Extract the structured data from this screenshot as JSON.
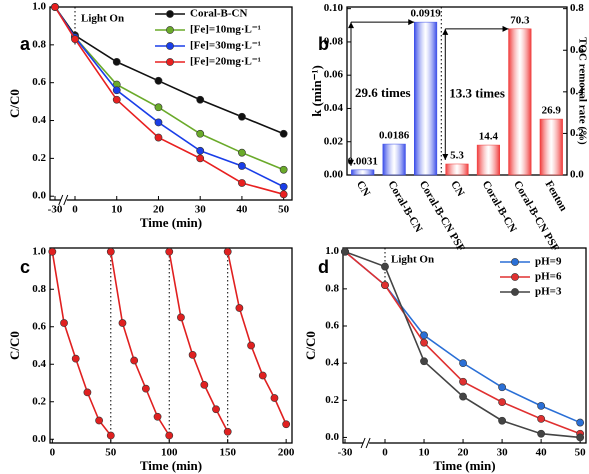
{
  "chart_data": [
    {
      "type": "line",
      "panel_label": "a",
      "xlabel": "Time (min)",
      "ylabel": "C/C0",
      "annotation": "Light On",
      "vlines": [
        0
      ],
      "x": [
        -30,
        0,
        10,
        20,
        30,
        40,
        50
      ],
      "xlim": [
        -37.5,
        52
      ],
      "xticks": [
        -30,
        0,
        10,
        20,
        30,
        40,
        50
      ],
      "x_break": true,
      "ylim": [
        -0.02,
        1.0
      ],
      "yticks": [
        {
          "value": 0,
          "label": "0.0"
        },
        {
          "value": 0.2,
          "label": "0.2"
        },
        {
          "value": 0.4,
          "label": "0.4"
        },
        {
          "value": 0.6,
          "label": "0.6"
        },
        {
          "value": 0.8,
          "label": "0.8"
        },
        {
          "value": 1,
          "label": "1.0"
        }
      ],
      "legend": "upper right",
      "series": [
        {
          "name": "Coral-B-CN",
          "color": "#111111",
          "values": [
            1.0,
            0.85,
            0.71,
            0.61,
            0.51,
            0.42,
            0.33
          ]
        },
        {
          "name": "[Fe]=10mg·L⁻¹",
          "color": "#6aaa2a",
          "values": [
            1.0,
            0.84,
            0.59,
            0.47,
            0.33,
            0.23,
            0.14
          ]
        },
        {
          "name": "[Fe]=30mg·L⁻¹",
          "color": "#1a3ee8",
          "values": [
            1.0,
            0.84,
            0.56,
            0.39,
            0.24,
            0.16,
            0.05
          ]
        },
        {
          "name": "[Fe]=20mg·L⁻¹",
          "color": "#e82020",
          "values": [
            1.0,
            0.83,
            0.51,
            0.31,
            0.2,
            0.07,
            0.01
          ]
        }
      ]
    },
    {
      "type": "bar",
      "panel_label": "b",
      "ylabel": "k (min⁻¹)",
      "y2label": "TOC removal rate (%)",
      "categories": [
        "CN",
        "Coral-B-CN",
        "Coral-B-CN PSF",
        "CN",
        "Coral-B-CN",
        "Coral-B-CN PSF",
        "Fenton"
      ],
      "ylim": [
        0,
        0.101
      ],
      "yticks": [
        {
          "value": 0,
          "label": "0.00"
        },
        {
          "value": 0.02,
          "label": "0.02"
        },
        {
          "value": 0.04,
          "label": "0.04"
        },
        {
          "value": 0.06,
          "label": "0.06"
        },
        {
          "value": 0.08,
          "label": "0.08"
        },
        {
          "value": 0.1,
          "label": "0.10"
        }
      ],
      "y2lim": [
        0,
        0.808
      ],
      "y2ticks": [
        {
          "value": 0,
          "label": "0.0"
        },
        {
          "value": 0.2,
          "label": "0.2"
        },
        {
          "value": 0.4,
          "label": "0.4"
        },
        {
          "value": 0.6,
          "label": "0.6"
        },
        {
          "value": 0.8,
          "label": "0.8"
        }
      ],
      "annotations": [
        "29.6 times",
        "13.3 times"
      ],
      "series": [
        {
          "color": "#3a4de8",
          "axis": "y",
          "values": [
            0.0031,
            0.0186,
            0.0919,
            null,
            null,
            null,
            null
          ]
        },
        {
          "color": "#f03a3a",
          "axis": "y2",
          "values": [
            null,
            null,
            null,
            0.053,
            0.144,
            0.703,
            0.269
          ],
          "value_labels": [
            null,
            null,
            null,
            "5.3",
            "14.4",
            "70.3",
            "26.9"
          ]
        }
      ]
    },
    {
      "type": "line",
      "panel_label": "c",
      "xlabel": "Time (min)",
      "ylabel": "C/C0",
      "vlines": [
        50,
        100,
        150
      ],
      "x": [
        0,
        10,
        20,
        30,
        40,
        50,
        null,
        50,
        60,
        70,
        80,
        90,
        100,
        null,
        100,
        110,
        120,
        130,
        140,
        150,
        null,
        150,
        160,
        170,
        180,
        190,
        200
      ],
      "xlim": [
        -2,
        205
      ],
      "xticks": [
        0,
        50,
        100,
        150,
        200
      ],
      "ylim": [
        -0.02,
        1.02
      ],
      "yticks": [
        {
          "value": 0,
          "label": "0.0"
        },
        {
          "value": 0.2,
          "label": "0.2"
        },
        {
          "value": 0.4,
          "label": "0.4"
        },
        {
          "value": 0.6,
          "label": "0.6"
        },
        {
          "value": 0.8,
          "label": "0.8"
        },
        {
          "value": 1,
          "label": "1.0"
        }
      ],
      "series": [
        {
          "color": "#e02020",
          "values": [
            1.0,
            0.62,
            0.43,
            0.25,
            0.1,
            0.02,
            null,
            1.0,
            0.62,
            0.42,
            0.27,
            0.12,
            0.02,
            null,
            1.0,
            0.65,
            0.45,
            0.29,
            0.16,
            0.04,
            null,
            1.0,
            0.7,
            0.5,
            0.34,
            0.22,
            0.08
          ]
        }
      ]
    },
    {
      "type": "line",
      "panel_label": "d",
      "xlabel": "Time (min)",
      "ylabel": "C/C0",
      "annotation": "Light On",
      "vlines": [
        0
      ],
      "x": [
        -30,
        0,
        10,
        20,
        30,
        40,
        50
      ],
      "xlim": [
        -31.5,
        51.5
      ],
      "xticks": [
        -30,
        0,
        10,
        20,
        30,
        40,
        50
      ],
      "x_break": true,
      "ylim": [
        -0.03,
        1.02
      ],
      "yticks": [
        {
          "value": 0,
          "label": "0.0"
        },
        {
          "value": 0.2,
          "label": "0.2"
        },
        {
          "value": 0.4,
          "label": "0.4"
        },
        {
          "value": 0.6,
          "label": "0.6"
        },
        {
          "value": 0.8,
          "label": "0.8"
        },
        {
          "value": 1,
          "label": "1.0"
        }
      ],
      "legend": "upper right",
      "series": [
        {
          "name": "pH=9",
          "color": "#2a6fd6",
          "values": [
            1.0,
            0.82,
            0.55,
            0.4,
            0.27,
            0.17,
            0.08
          ]
        },
        {
          "name": "pH=6",
          "color": "#e03030",
          "values": [
            1.0,
            0.82,
            0.51,
            0.3,
            0.19,
            0.1,
            0.02
          ]
        },
        {
          "name": "pH=3",
          "color": "#444444",
          "values": [
            1.0,
            0.92,
            0.41,
            0.22,
            0.09,
            0.02,
            0.0
          ]
        }
      ]
    }
  ]
}
